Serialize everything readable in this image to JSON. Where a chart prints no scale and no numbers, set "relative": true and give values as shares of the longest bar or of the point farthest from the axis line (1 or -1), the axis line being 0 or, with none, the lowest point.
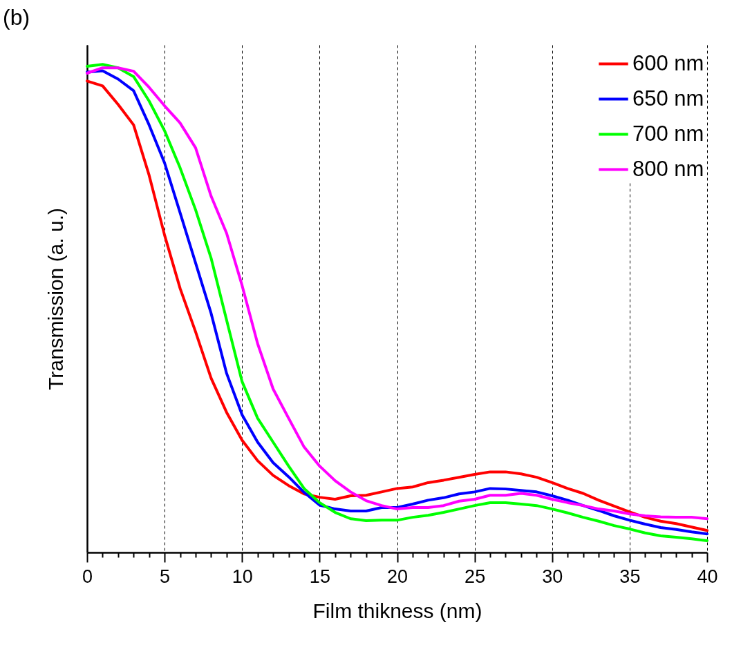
{
  "chart_data": {
    "type": "line",
    "title": "(b)",
    "xlabel": "Film thikness (nm)",
    "ylabel": "Transmission (a. u.)",
    "relative": true,
    "x": [
      0,
      1,
      2,
      3,
      4,
      5,
      6,
      7,
      8,
      9,
      10,
      11,
      12,
      13,
      14,
      15,
      16,
      17,
      18,
      19,
      20,
      21,
      22,
      23,
      24,
      25,
      26,
      27,
      28,
      29,
      30,
      31,
      32,
      33,
      34,
      35,
      36,
      37,
      38,
      39,
      40
    ],
    "xlim": [
      0,
      40
    ],
    "xticks": [
      0,
      {
        "value": 1,
        "label": null
      },
      {
        "value": 2,
        "label": null
      },
      {
        "value": 3,
        "label": null
      },
      {
        "value": 4,
        "label": null
      },
      5,
      {
        "value": 6,
        "label": null
      },
      {
        "value": 7,
        "label": null
      },
      {
        "value": 8,
        "label": null
      },
      {
        "value": 9,
        "label": null
      },
      10,
      {
        "value": 11,
        "label": null
      },
      {
        "value": 12,
        "label": null
      },
      {
        "value": 13,
        "label": null
      },
      {
        "value": 14,
        "label": null
      },
      15,
      {
        "value": 16,
        "label": null
      },
      {
        "value": 17,
        "label": null
      },
      {
        "value": 18,
        "label": null
      },
      {
        "value": 19,
        "label": null
      },
      20,
      {
        "value": 21,
        "label": null
      },
      {
        "value": 22,
        "label": null
      },
      {
        "value": 23,
        "label": null
      },
      {
        "value": 24,
        "label": null
      },
      25,
      {
        "value": 26,
        "label": null
      },
      {
        "value": 27,
        "label": null
      },
      {
        "value": 28,
        "label": null
      },
      {
        "value": 29,
        "label": null
      },
      30,
      {
        "value": 31,
        "label": null
      },
      {
        "value": 32,
        "label": null
      },
      {
        "value": 33,
        "label": null
      },
      {
        "value": 34,
        "label": null
      },
      35,
      {
        "value": 36,
        "label": null
      },
      {
        "value": 37,
        "label": null
      },
      {
        "value": 38,
        "label": null
      },
      {
        "value": 39,
        "label": null
      },
      40
    ],
    "grid": "x",
    "legend": "top right",
    "line_style": "solid",
    "tick_labels": "x",
    "series": [
      {
        "name": "600 nm",
        "color": "#ff0000",
        "values": [
          0.966,
          0.956,
          0.918,
          0.876,
          0.773,
          0.65,
          0.541,
          0.452,
          0.357,
          0.287,
          0.23,
          0.188,
          0.158,
          0.137,
          0.12,
          0.113,
          0.109,
          0.116,
          0.117,
          0.124,
          0.131,
          0.134,
          0.143,
          0.148,
          0.154,
          0.16,
          0.165,
          0.165,
          0.161,
          0.154,
          0.143,
          0.131,
          0.121,
          0.107,
          0.095,
          0.083,
          0.072,
          0.064,
          0.059,
          0.052,
          0.045
        ]
      },
      {
        "name": "650 nm",
        "color": "#0000ff",
        "values": [
          0.984,
          0.987,
          0.97,
          0.946,
          0.876,
          0.798,
          0.696,
          0.593,
          0.49,
          0.367,
          0.282,
          0.226,
          0.184,
          0.155,
          0.123,
          0.097,
          0.089,
          0.085,
          0.085,
          0.092,
          0.092,
          0.099,
          0.107,
          0.112,
          0.12,
          0.124,
          0.131,
          0.13,
          0.127,
          0.124,
          0.116,
          0.107,
          0.096,
          0.086,
          0.075,
          0.066,
          0.058,
          0.051,
          0.047,
          0.042,
          0.038
        ]
      },
      {
        "name": "700 nm",
        "color": "#00ff00",
        "values": [
          0.996,
          1.0,
          0.993,
          0.975,
          0.925,
          0.864,
          0.788,
          0.702,
          0.603,
          0.476,
          0.35,
          0.275,
          0.226,
          0.177,
          0.131,
          0.102,
          0.082,
          0.069,
          0.065,
          0.066,
          0.066,
          0.072,
          0.076,
          0.082,
          0.089,
          0.096,
          0.102,
          0.102,
          0.099,
          0.096,
          0.089,
          0.081,
          0.072,
          0.064,
          0.055,
          0.048,
          0.04,
          0.034,
          0.031,
          0.028,
          0.024
        ]
      },
      {
        "name": "800 nm",
        "color": "#ff00ff",
        "values": [
          0.982,
          0.993,
          0.993,
          0.986,
          0.953,
          0.915,
          0.88,
          0.829,
          0.73,
          0.654,
          0.547,
          0.428,
          0.335,
          0.275,
          0.216,
          0.177,
          0.147,
          0.124,
          0.106,
          0.096,
          0.089,
          0.092,
          0.092,
          0.096,
          0.105,
          0.109,
          0.117,
          0.117,
          0.121,
          0.117,
          0.109,
          0.102,
          0.096,
          0.089,
          0.085,
          0.079,
          0.075,
          0.073,
          0.072,
          0.072,
          0.069
        ]
      }
    ]
  }
}
